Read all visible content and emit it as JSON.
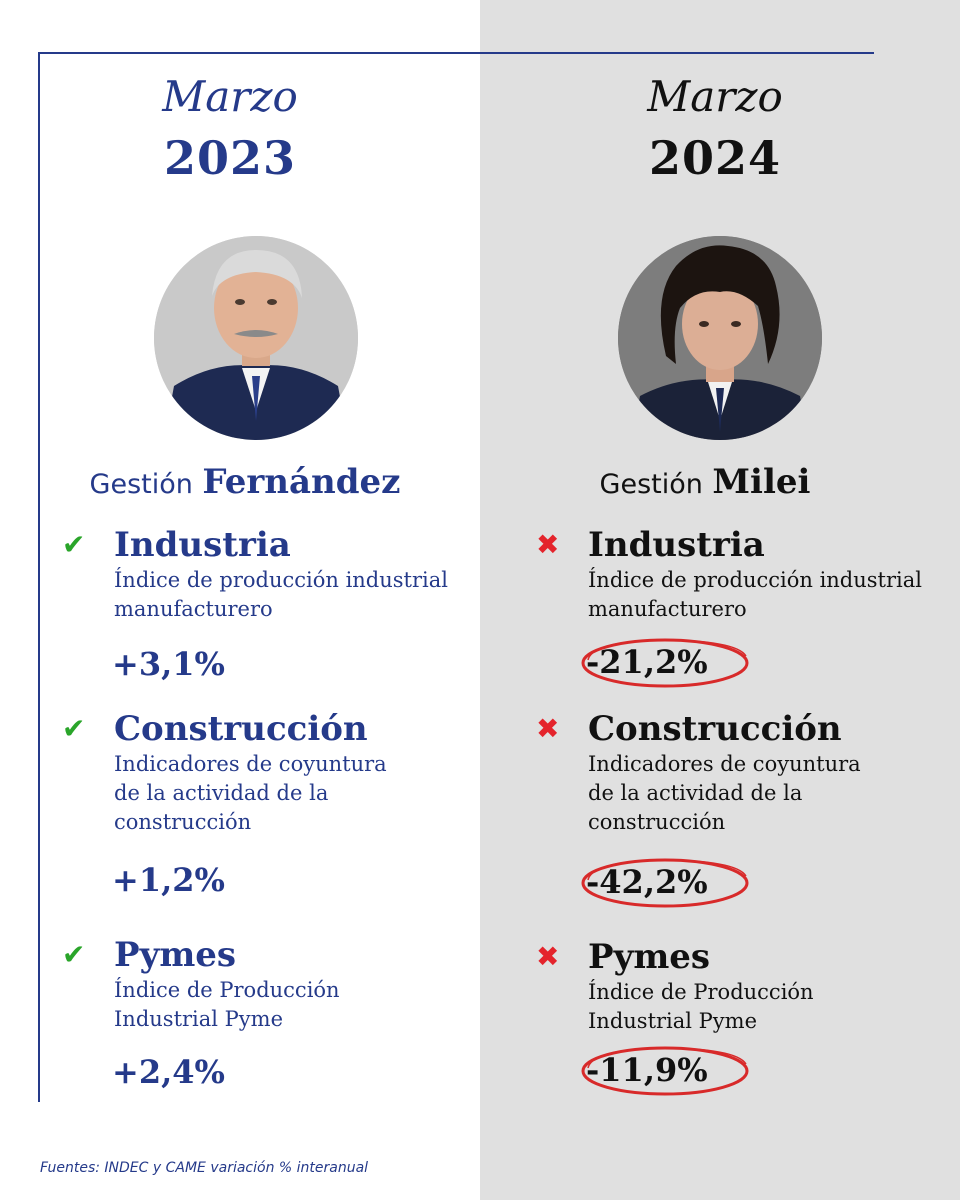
{
  "colors": {
    "left_accent": "#253a8a",
    "right_text": "#111111",
    "right_background": "#e0e0e0",
    "check_green": "#2aa52a",
    "cross_red": "#e4242c"
  },
  "left": {
    "month": "Marzo",
    "year": "2023",
    "gestion_word": "Gestión",
    "gestion_name": "Fernández",
    "portrait_icon": "portrait-photo",
    "mark_icon": "check-icon",
    "mark_glyph": "✔",
    "industria": {
      "title": "Industria",
      "desc_line1": "Índice de producción industrial",
      "desc_line2": "manufacturero",
      "value": "+3,1%"
    },
    "construccion": {
      "title": "Construcción",
      "desc_line1": "Indicadores de coyuntura",
      "desc_line2": "de la actividad de la",
      "desc_line3": "construcción",
      "value": "+1,2%"
    },
    "pymes": {
      "title": "Pymes",
      "desc_line1": "Índice de Producción",
      "desc_line2": "Industrial Pyme",
      "value": "+2,4%"
    }
  },
  "right": {
    "month": "Marzo",
    "year": "2024",
    "gestion_word": "Gestión",
    "gestion_name": "Milei",
    "portrait_icon": "portrait-photo",
    "mark_icon": "cross-icon",
    "mark_glyph": "✖",
    "industria": {
      "title": "Industria",
      "desc_line1": "Índice de producción industrial",
      "desc_line2": "manufacturero",
      "value": "-21,2%"
    },
    "construccion": {
      "title": "Construcción",
      "desc_line1": "Indicadores de coyuntura",
      "desc_line2": "de la actividad de la",
      "desc_line3": "construcción",
      "value": "-42,2%"
    },
    "pymes": {
      "title": "Pymes",
      "desc_line1": "Índice de Producción",
      "desc_line2": "Industrial Pyme",
      "value": "-11,9%"
    }
  },
  "footer": {
    "sources": "Fuentes: INDEC y CAME variación % interanual"
  }
}
